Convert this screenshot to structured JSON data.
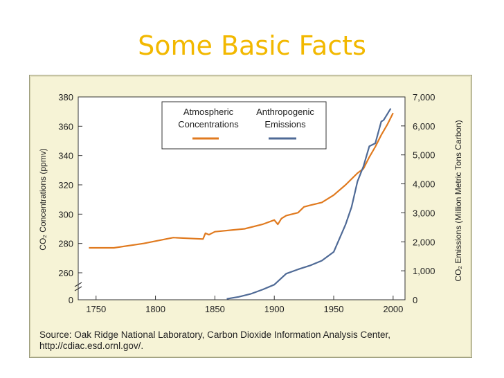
{
  "slide": {
    "title": "Some Basic Facts"
  },
  "source": {
    "line1": "Source: Oak Ridge National Laboratory, Carbon Dioxide Information Analysis Center,",
    "line2": "http://cdiac.esd.ornl.gov/."
  },
  "legend": {
    "atm_line1": "Atmospheric",
    "atm_line2": "Concentrations",
    "emi_line1": "Anthropogenic",
    "emi_line2": "Emissions"
  },
  "colors": {
    "title": "#f2b800",
    "concentration": "#e07a1f",
    "emissions": "#4f6a96",
    "panel": "#f6f3d6"
  },
  "chart_data": {
    "type": "line",
    "x_ticks": [
      1750,
      1800,
      1850,
      1900,
      1950,
      2000
    ],
    "xlim": [
      1735,
      2010
    ],
    "left_axis": {
      "label": "CO₂ Concentrations (ppmv)",
      "ticks": [
        "380",
        "360",
        "340",
        "320",
        "300",
        "280",
        "260",
        "0"
      ],
      "ylim": [
        250,
        380
      ],
      "axis_break": true
    },
    "right_axis": {
      "label": "CO₂ Emissions (Million Metric Tons Carbon)",
      "ticks": [
        "7,000",
        "6,000",
        "5,000",
        "4,000",
        "3,000",
        "2,000",
        "1,000",
        "0"
      ],
      "ylim": [
        0,
        7000
      ]
    },
    "series": [
      {
        "name": "Atmospheric Concentrations",
        "axis": "left",
        "x": [
          1744,
          1765,
          1790,
          1815,
          1840,
          1842,
          1845,
          1850,
          1875,
          1890,
          1900,
          1903,
          1906,
          1910,
          1920,
          1925,
          1930,
          1940,
          1950,
          1960,
          1970,
          1975,
          1980,
          1985,
          1990,
          1995,
          2000
        ],
        "y": [
          277,
          277,
          280,
          284,
          283,
          287,
          286,
          288,
          290,
          293,
          296,
          293,
          297,
          299,
          301,
          305,
          306,
          308,
          313,
          320,
          328,
          331,
          339,
          346,
          354,
          361,
          369
        ]
      },
      {
        "name": "Anthropogenic Emissions",
        "axis": "right",
        "x": [
          1860,
          1870,
          1880,
          1890,
          1900,
          1910,
          1920,
          1930,
          1940,
          1950,
          1960,
          1965,
          1970,
          1975,
          1980,
          1985,
          1990,
          1992,
          1995,
          1998
        ],
        "y": [
          30,
          100,
          200,
          350,
          520,
          900,
          1050,
          1180,
          1350,
          1650,
          2600,
          3200,
          4080,
          4600,
          5300,
          5400,
          6150,
          6200,
          6400,
          6600
        ]
      }
    ]
  }
}
